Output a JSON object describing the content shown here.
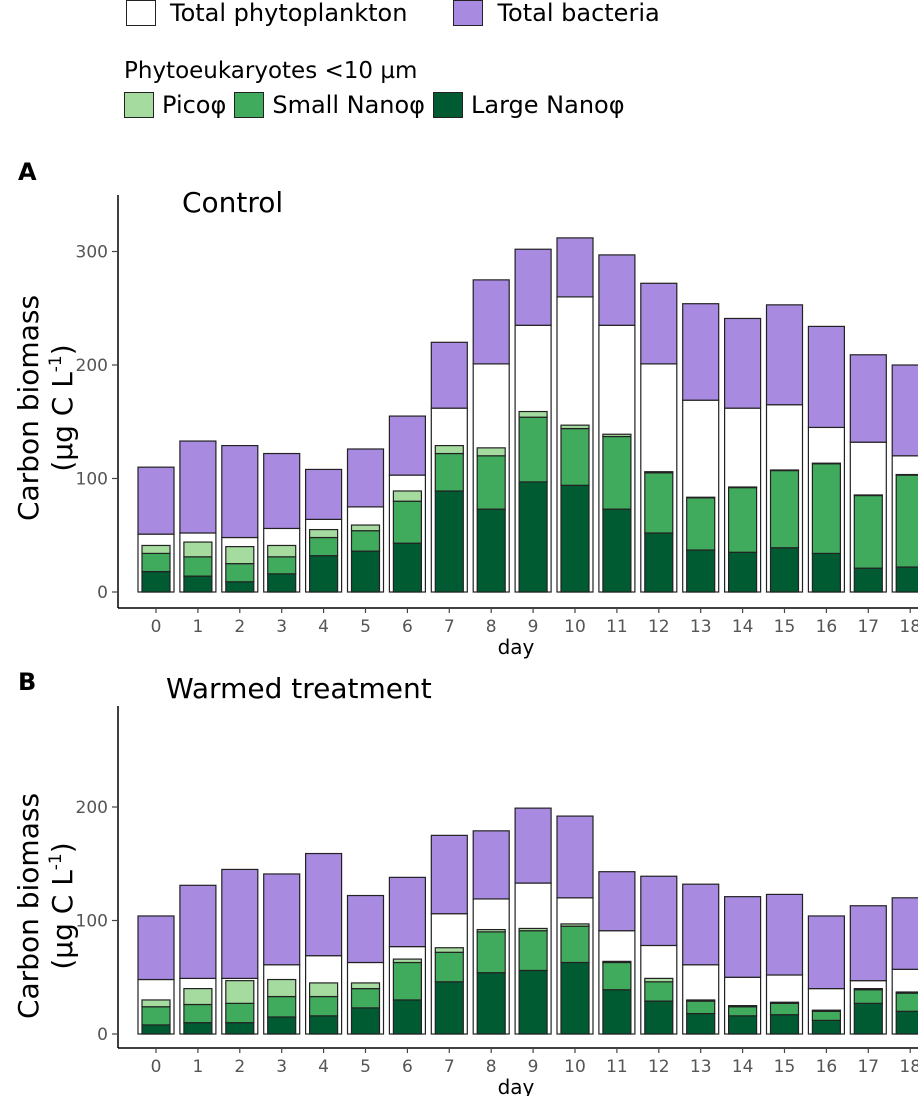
{
  "legend": {
    "total_phyto_label": "Total phytoplankton",
    "total_bacteria_label": "Total bacteria",
    "title": "Phytoeukaryotes <10 µm",
    "pico_label": "Picoφ",
    "small_nano_label": "Small Nanoφ",
    "large_nano_label": "Large Nanoφ"
  },
  "colors": {
    "total_phyto": "#ffffff",
    "bacteria": "#a88be0",
    "pico": "#a6dba0",
    "small_nano": "#41ab5d",
    "large_nano": "#005a32",
    "outline": "#222222"
  },
  "chart_data": [
    {
      "type": "bar",
      "panel_label": "A",
      "title": "Control",
      "xlabel": "day",
      "ylabel": "Carbon biomass",
      "ylabel_unit": "(µg C L",
      "ylabel_unit_sup": "-1",
      "ylabel_unit_end": ")",
      "ylim": [
        0,
        350
      ],
      "yticks": [
        0,
        100,
        200,
        300
      ],
      "categories": [
        "0",
        "1",
        "2",
        "3",
        "4",
        "5",
        "6",
        "7",
        "8",
        "9",
        "10",
        "11",
        "12",
        "13",
        "14",
        "15",
        "16",
        "17",
        "18"
      ],
      "series": [
        {
          "name": "Total phytoplankton",
          "values": [
            51,
            52,
            48,
            56,
            64,
            75,
            103,
            162,
            201,
            235,
            260,
            235,
            201,
            169,
            162,
            165,
            145,
            132,
            120
          ]
        },
        {
          "name": "Total bacteria",
          "values": [
            59,
            81,
            81,
            66,
            44,
            51,
            52,
            58,
            74,
            67,
            52,
            62,
            71,
            85,
            79,
            88,
            89,
            77,
            80
          ]
        },
        {
          "name": "Large Nanoφ",
          "values": [
            18,
            14,
            9,
            16,
            32,
            36,
            43,
            89,
            73,
            97,
            94,
            73,
            52,
            37,
            35,
            39,
            34,
            21,
            22
          ]
        },
        {
          "name": "Small Nanoφ",
          "values": [
            16,
            17,
            16,
            15,
            16,
            18,
            37,
            33,
            47,
            57,
            50,
            64,
            53,
            46,
            57,
            68,
            79,
            64,
            81
          ]
        },
        {
          "name": "Picoφ",
          "values": [
            7,
            13,
            15,
            10,
            7,
            5,
            9,
            7,
            7,
            5,
            3,
            2,
            1,
            0.5,
            0.5,
            0.5,
            0.5,
            0.5,
            0.5
          ]
        }
      ]
    },
    {
      "type": "bar",
      "panel_label": "B",
      "title": "Warmed treatment",
      "xlabel": "day",
      "ylabel": "Carbon biomass",
      "ylabel_unit": "(µg C L",
      "ylabel_unit_sup": "-1",
      "ylabel_unit_end": ")",
      "ylim": [
        0,
        285
      ],
      "yticks": [
        0,
        100,
        200
      ],
      "categories": [
        "0",
        "1",
        "2",
        "3",
        "4",
        "5",
        "6",
        "7",
        "8",
        "9",
        "10",
        "11",
        "12",
        "13",
        "14",
        "15",
        "16",
        "17",
        "18"
      ],
      "series": [
        {
          "name": "Total phytoplankton",
          "values": [
            48,
            49,
            49,
            61,
            69,
            63,
            77,
            106,
            119,
            133,
            120,
            91,
            78,
            61,
            50,
            52,
            40,
            47,
            57
          ]
        },
        {
          "name": "Total bacteria",
          "values": [
            56,
            82,
            96,
            80,
            90,
            59,
            61,
            69,
            60,
            66,
            72,
            52,
            61,
            71,
            71,
            71,
            64,
            66,
            63
          ]
        },
        {
          "name": "Large Nanoφ",
          "values": [
            8,
            10,
            10,
            15,
            16,
            23,
            30,
            46,
            54,
            56,
            63,
            39,
            29,
            18,
            16,
            17,
            12,
            27,
            20
          ]
        },
        {
          "name": "Small Nanoφ",
          "values": [
            16,
            16,
            17,
            18,
            17,
            17,
            33,
            26,
            36,
            35,
            32,
            24,
            17,
            11,
            8,
            10,
            8,
            12,
            16
          ]
        },
        {
          "name": "Picoφ",
          "values": [
            6,
            14,
            20,
            15,
            12,
            5,
            3,
            4,
            2,
            2,
            2,
            1,
            3,
            1,
            1,
            1,
            1,
            1,
            1
          ]
        }
      ]
    }
  ]
}
